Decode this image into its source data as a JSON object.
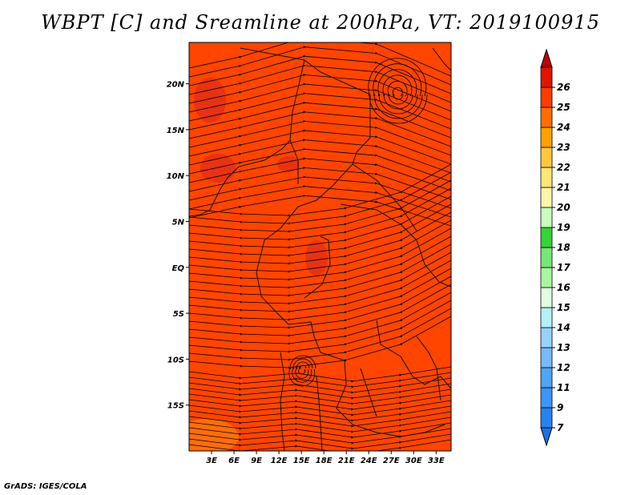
{
  "title": "WBPT [C] and Sreamline at 200hPa, VT: 2019100915",
  "footer": "GrADS: IGES/COLA",
  "map": {
    "lon_range": [
      0,
      35
    ],
    "lat_range": [
      -20,
      24.5
    ],
    "lat_labels": [
      {
        "text": "20N",
        "lat": 20
      },
      {
        "text": "15N",
        "lat": 15
      },
      {
        "text": "10N",
        "lat": 10
      },
      {
        "text": "5N",
        "lat": 5
      },
      {
        "text": "EQ",
        "lat": 0
      },
      {
        "text": "5S",
        "lat": -5
      },
      {
        "text": "10S",
        "lat": -10
      },
      {
        "text": "15S",
        "lat": -15
      }
    ],
    "lon_labels": [
      {
        "text": "3E",
        "lon": 3
      },
      {
        "text": "6E",
        "lon": 6
      },
      {
        "text": "9E",
        "lon": 9
      },
      {
        "text": "12E",
        "lon": 12
      },
      {
        "text": "15E",
        "lon": 15
      },
      {
        "text": "18E",
        "lon": 18
      },
      {
        "text": "21E",
        "lon": 21
      },
      {
        "text": "24E",
        "lon": 24
      },
      {
        "text": "27E",
        "lon": 27
      },
      {
        "text": "30E",
        "lon": 30
      },
      {
        "text": "33E",
        "lon": 33
      }
    ],
    "dominant_fill": "#ff4500",
    "warm_patch": "#e83214",
    "cool_patch": "#ff6e0a"
  },
  "colorbar": {
    "labels": [
      "7",
      "9",
      "11",
      "12",
      "13",
      "14",
      "15",
      "16",
      "17",
      "18",
      "19",
      "20",
      "21",
      "22",
      "23",
      "24",
      "25",
      "26"
    ],
    "colors": [
      "#1e6ee6",
      "#2882f0",
      "#3c96f5",
      "#50a5f5",
      "#78b9fa",
      "#96d2fa",
      "#b4f0fa",
      "#e1ffe1",
      "#aaf5a0",
      "#78e678",
      "#37d23c",
      "#c8ffbe",
      "#fff5aa",
      "#ffe678",
      "#ffc83c",
      "#ffa000",
      "#ff6e00",
      "#ff3c00",
      "#e11400",
      "#c00000"
    ]
  }
}
